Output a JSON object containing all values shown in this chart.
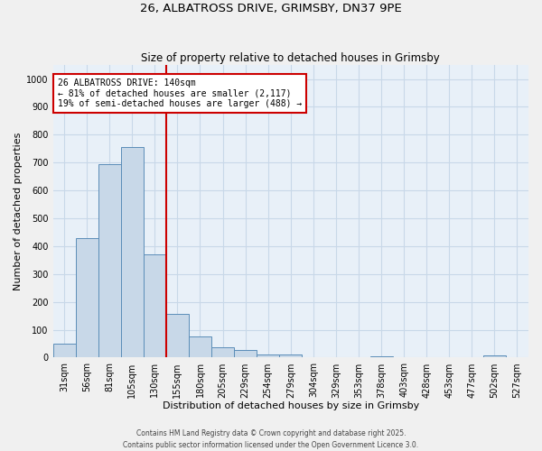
{
  "title1": "26, ALBATROSS DRIVE, GRIMSBY, DN37 9PE",
  "title2": "Size of property relative to detached houses in Grimsby",
  "xlabel": "Distribution of detached houses by size in Grimsby",
  "ylabel": "Number of detached properties",
  "bar_labels": [
    "31sqm",
    "56sqm",
    "81sqm",
    "105sqm",
    "130sqm",
    "155sqm",
    "180sqm",
    "205sqm",
    "229sqm",
    "254sqm",
    "279sqm",
    "304sqm",
    "329sqm",
    "353sqm",
    "378sqm",
    "403sqm",
    "428sqm",
    "453sqm",
    "477sqm",
    "502sqm",
    "527sqm"
  ],
  "bar_values": [
    50,
    430,
    695,
    755,
    370,
    158,
    75,
    38,
    28,
    12,
    10,
    2,
    0,
    0,
    5,
    0,
    0,
    0,
    0,
    8,
    0
  ],
  "bar_color": "#c8d8e8",
  "bar_edge_color": "#5b8db8",
  "grid_color": "#c8d8e8",
  "bg_color": "#e8f0f8",
  "vline_color": "#cc0000",
  "annotation_text": "26 ALBATROSS DRIVE: 140sqm\n← 81% of detached houses are smaller (2,117)\n19% of semi-detached houses are larger (488) →",
  "annotation_box_color": "#ffffff",
  "annotation_border_color": "#cc0000",
  "ylim": [
    0,
    1050
  ],
  "yticks": [
    0,
    100,
    200,
    300,
    400,
    500,
    600,
    700,
    800,
    900,
    1000
  ],
  "footer1": "Contains HM Land Registry data © Crown copyright and database right 2025.",
  "footer2": "Contains public sector information licensed under the Open Government Licence 3.0.",
  "fig_bg": "#f0f0f0"
}
